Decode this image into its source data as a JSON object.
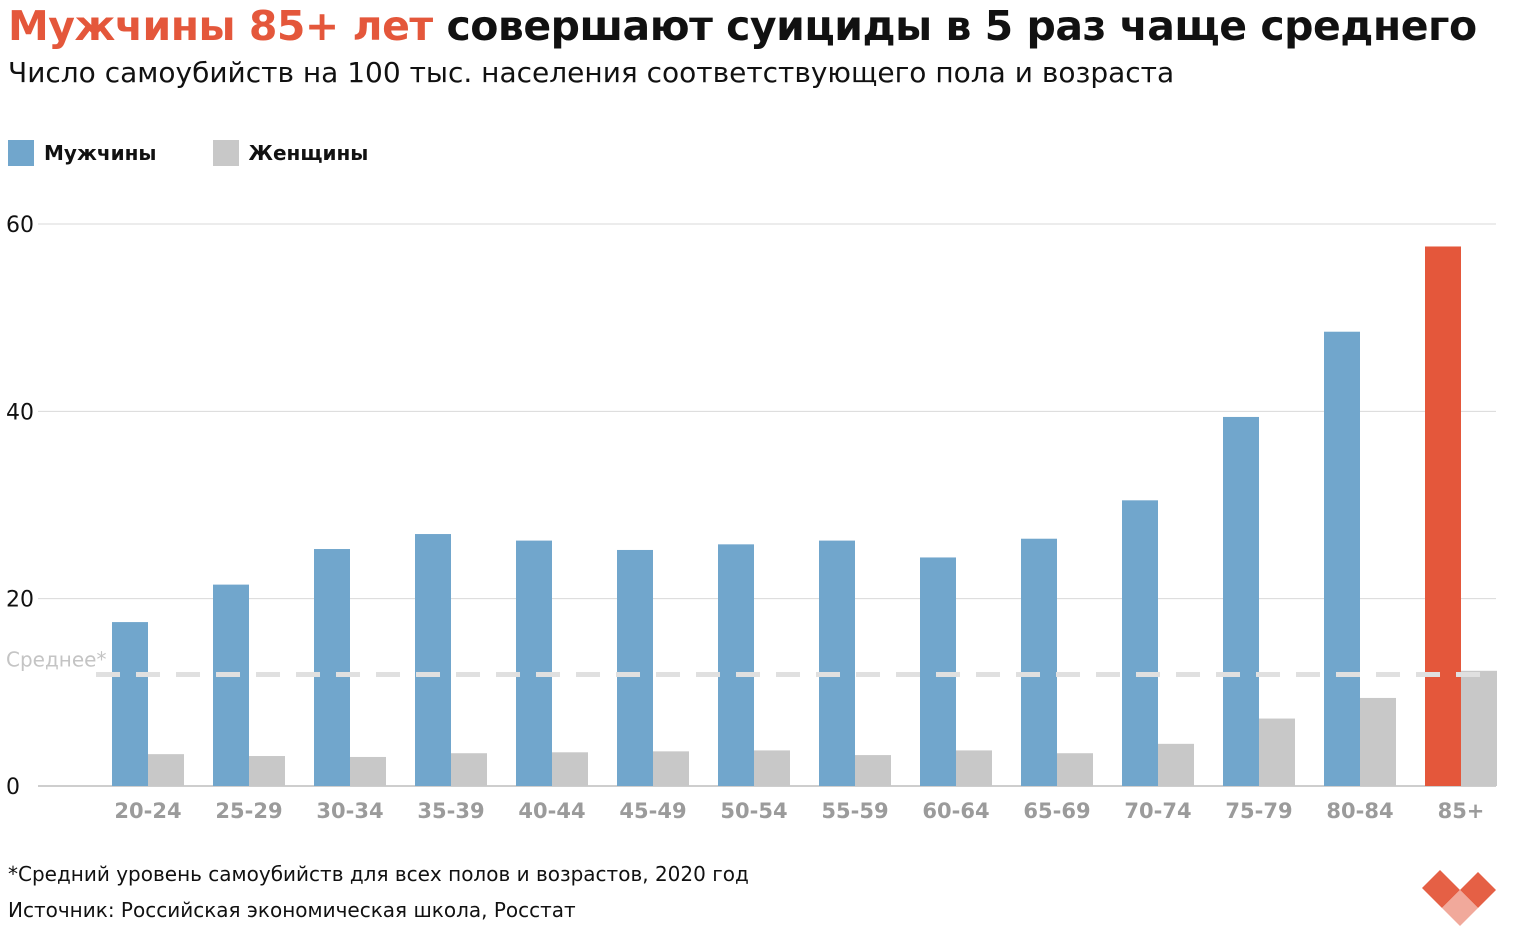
{
  "title": {
    "accent": "Мужчины 85+ лет",
    "rest": " совершают суициды в 5 раз чаще среднего"
  },
  "subtitle": "Число самоубийств на 100 тыс. населения соответствующего пола и возраста",
  "footnote": "*Средний уровень самоубийств для всех полов и возрастов, 2020 год",
  "source": "Источник: Российская экономическая школа, Росстат",
  "colors": {
    "men": "#71a6cc",
    "women": "#c8c8c8",
    "highlight": "#e4573b",
    "avg_line": "#e0e0e0",
    "grid": "#d9d9d9",
    "tick": "#111111",
    "category": "#9b9b9b"
  },
  "logo_icon": "hearts-logo-icon",
  "chart_data": {
    "type": "bar",
    "categories": [
      "20-24",
      "25-29",
      "30-34",
      "35-39",
      "40-44",
      "45-49",
      "50-54",
      "55-59",
      "60-64",
      "65-69",
      "70-74",
      "75-79",
      "80-84",
      "85+"
    ],
    "series": [
      {
        "name": "Мужчины",
        "values": [
          17.5,
          21.5,
          25.3,
          26.9,
          26.2,
          25.2,
          25.8,
          26.2,
          24.4,
          26.4,
          30.5,
          39.4,
          48.5,
          57.6
        ]
      },
      {
        "name": "Женщины",
        "values": [
          3.4,
          3.2,
          3.1,
          3.5,
          3.6,
          3.7,
          3.8,
          3.3,
          3.8,
          3.5,
          4.5,
          7.2,
          9.4,
          12.3
        ]
      }
    ],
    "highlight_category": "85+",
    "average": {
      "label": "Среднее*",
      "value": 11.9
    },
    "yticks": [
      0,
      20,
      40,
      60
    ],
    "ylim": [
      0,
      60
    ],
    "legend_position": "top-left",
    "grid": true
  }
}
